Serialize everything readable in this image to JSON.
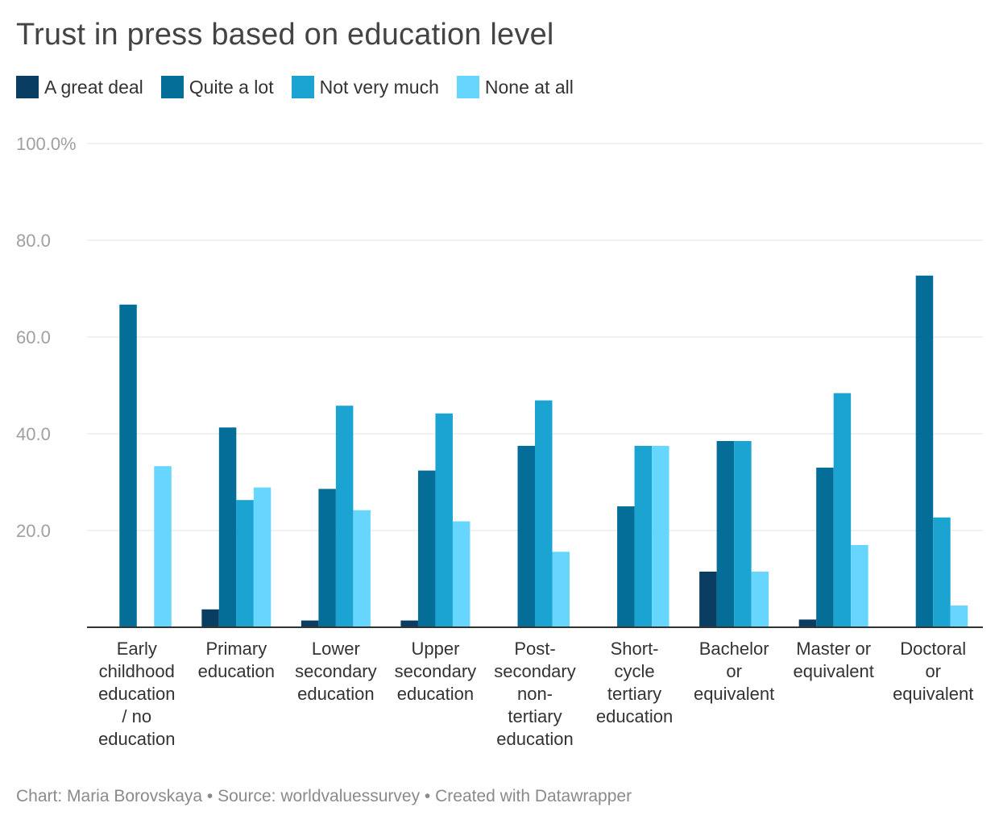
{
  "title": "Trust in press based on education level",
  "footer": {
    "author": "Chart: Maria Borovskaya",
    "sep1": " • ",
    "source": "Source: worldvaluessurvey",
    "sep2": " • ",
    "credit": "Created with Datawrapper"
  },
  "chart_data": {
    "type": "bar",
    "title": "Trust in press based on education level",
    "xlabel": "",
    "ylabel": "",
    "ylim": [
      0,
      100
    ],
    "yticks": [
      {
        "value": 100,
        "label": "100.0%"
      },
      {
        "value": 80,
        "label": "80.0"
      },
      {
        "value": 60,
        "label": "60.0"
      },
      {
        "value": 40,
        "label": "40.0"
      },
      {
        "value": 20,
        "label": "20.0"
      }
    ],
    "grid": true,
    "legend_position": "top-left",
    "categories": [
      [
        "Early",
        "childhood",
        "education",
        "/ no",
        "education"
      ],
      [
        "Primary",
        "education"
      ],
      [
        "Lower",
        "secondary",
        "education"
      ],
      [
        "Upper",
        "secondary",
        "education"
      ],
      [
        "Post-",
        "secondary",
        "non-",
        "tertiary",
        "education"
      ],
      [
        "Short-",
        "cycle",
        "tertiary",
        "education"
      ],
      [
        "Bachelor",
        "or",
        "equivalent"
      ],
      [
        "Master or",
        "equivalent"
      ],
      [
        "Doctoral",
        "or",
        "equivalent"
      ]
    ],
    "series": [
      {
        "name": "A great deal",
        "color": "#0a3d62",
        "values": [
          0,
          3.7,
          1.4,
          1.4,
          0,
          0,
          11.5,
          1.6,
          0
        ]
      },
      {
        "name": "Quite a lot",
        "color": "#046e99",
        "values": [
          66.7,
          41.3,
          28.6,
          32.4,
          37.5,
          25.0,
          38.5,
          33.0,
          72.7
        ]
      },
      {
        "name": "Not very much",
        "color": "#1ba3d1",
        "values": [
          0,
          26.3,
          45.8,
          44.2,
          46.9,
          37.5,
          38.5,
          48.4,
          22.7
        ]
      },
      {
        "name": "None at all",
        "color": "#66d6ff",
        "values": [
          33.3,
          28.9,
          24.2,
          21.9,
          15.6,
          37.5,
          11.5,
          17.0,
          4.5
        ]
      }
    ]
  }
}
